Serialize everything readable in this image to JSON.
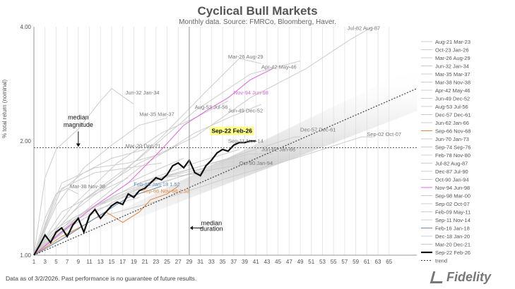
{
  "chart_data": {
    "type": "line",
    "title": "Cyclical Bull Markets",
    "subtitle": "Monthly data.  Source: FMRCo, Bloomberg, Haver.",
    "ylabel": "% total return (nominal)",
    "xlabel": "",
    "y_scale": "log",
    "ylim": [
      1.0,
      4.0
    ],
    "y_ticks": [
      {
        "value": 1.0,
        "label": "1.00"
      },
      {
        "value": 2.0,
        "label": "2.00"
      },
      {
        "value": 4.0,
        "label": "4.00"
      }
    ],
    "xlim": [
      1,
      70
    ],
    "x_ticks": [
      1,
      3,
      5,
      7,
      9,
      11,
      13,
      15,
      17,
      19,
      21,
      23,
      25,
      27,
      29,
      31,
      33,
      35,
      37,
      39,
      41,
      43,
      45,
      47,
      49,
      51,
      53,
      55,
      57,
      59,
      61,
      63,
      65
    ],
    "median_duration_x": 29,
    "median_magnitude_y": 1.92,
    "grid": true,
    "legend_position": "right",
    "series": [
      {
        "name": "Aug-21 Mar-23",
        "color": "#cccccc",
        "x": [
          1,
          5,
          9,
          13,
          17,
          20
        ],
        "y": [
          1.0,
          1.12,
          1.25,
          1.33,
          1.38,
          1.42
        ]
      },
      {
        "name": "Oct-23 Jan-26",
        "color": "#cccccc",
        "x": [
          1,
          6,
          12,
          18,
          24,
          28
        ],
        "y": [
          1.0,
          1.18,
          1.35,
          1.55,
          1.7,
          1.8
        ]
      },
      {
        "name": "Mar-26 Aug-29",
        "color": "#cccccc",
        "x": [
          1,
          8,
          16,
          24,
          32,
          38,
          42
        ],
        "y": [
          1.0,
          1.3,
          1.6,
          2.05,
          2.7,
          3.3,
          3.2
        ]
      },
      {
        "name": "Jun-32 Jan-34",
        "color": "#cccccc",
        "x": [
          1,
          3,
          5,
          9,
          13,
          15,
          19
        ],
        "y": [
          1.0,
          1.6,
          1.9,
          2.15,
          2.55,
          2.75,
          2.5
        ]
      },
      {
        "name": "Mar-35 Mar-37",
        "color": "#cccccc",
        "x": [
          1,
          5,
          10,
          15,
          20,
          25
        ],
        "y": [
          1.0,
          1.35,
          1.7,
          1.95,
          2.2,
          2.3
        ]
      },
      {
        "name": "Mar-38 Nov-38",
        "color": "#cccccc",
        "x": [
          1,
          3,
          5,
          7,
          9
        ],
        "y": [
          1.0,
          1.25,
          1.45,
          1.5,
          1.45
        ]
      },
      {
        "name": "Apr-42 May-46",
        "color": "#cccccc",
        "x": [
          1,
          10,
          20,
          30,
          40,
          49
        ],
        "y": [
          1.0,
          1.4,
          1.8,
          2.4,
          3.0,
          3.25
        ]
      },
      {
        "name": "Jun-49 Dec-52",
        "color": "#cccccc",
        "x": [
          1,
          10,
          20,
          30,
          36,
          42
        ],
        "y": [
          1.0,
          1.3,
          1.7,
          2.1,
          2.3,
          2.5
        ]
      },
      {
        "name": "Aug-53 Jul-56",
        "color": "#cccccc",
        "x": [
          1,
          8,
          16,
          24,
          30,
          36
        ],
        "y": [
          1.0,
          1.35,
          1.75,
          2.1,
          2.3,
          2.55
        ]
      },
      {
        "name": "Dec-57 Dec-61",
        "color": "#cccccc",
        "x": [
          1,
          12,
          24,
          36,
          48,
          49
        ],
        "y": [
          1.0,
          1.35,
          1.6,
          1.8,
          2.05,
          2.05
        ]
      },
      {
        "name": "Jun-62 Jan-66",
        "color": "#cccccc",
        "x": [
          1,
          10,
          20,
          30,
          40,
          44
        ],
        "y": [
          1.0,
          1.3,
          1.55,
          1.7,
          1.85,
          1.85
        ]
      },
      {
        "name": "Sep-66 Nov-68",
        "color": "#e6843a",
        "x": [
          1,
          6,
          10,
          14,
          17,
          20,
          22,
          25,
          27
        ],
        "y": [
          1.0,
          1.12,
          1.2,
          1.3,
          1.22,
          1.3,
          1.4,
          1.45,
          1.52
        ]
      },
      {
        "name": "Jun-70 Jan-73",
        "color": "#cccccc",
        "x": [
          1,
          8,
          16,
          24,
          32
        ],
        "y": [
          1.0,
          1.25,
          1.45,
          1.6,
          1.7
        ]
      },
      {
        "name": "Sep-74 Sep-76",
        "color": "#cccccc",
        "x": [
          1,
          6,
          12,
          18,
          24
        ],
        "y": [
          1.0,
          1.5,
          1.65,
          1.7,
          1.75
        ]
      },
      {
        "name": "Feb-78 Nov-80",
        "color": "#cccccc",
        "x": [
          1,
          8,
          16,
          24,
          32,
          34
        ],
        "y": [
          1.0,
          1.2,
          1.4,
          1.55,
          1.7,
          1.75
        ]
      },
      {
        "name": "Jul-82 Aug-87",
        "color": "#cccccc",
        "x": [
          1,
          10,
          20,
          30,
          40,
          50,
          58,
          62
        ],
        "y": [
          1.0,
          1.4,
          1.75,
          2.05,
          2.6,
          3.1,
          3.7,
          4.0
        ]
      },
      {
        "name": "Dec-87 Jul-90",
        "color": "#cccccc",
        "x": [
          1,
          8,
          16,
          24,
          32
        ],
        "y": [
          1.0,
          1.2,
          1.4,
          1.6,
          1.65
        ]
      },
      {
        "name": "Oct-90 Jan-94",
        "color": "#cccccc",
        "x": [
          1,
          10,
          20,
          30,
          40
        ],
        "y": [
          1.0,
          1.3,
          1.5,
          1.65,
          1.75
        ]
      },
      {
        "name": "Nov-94 Jun-98",
        "color": "#e066e0",
        "x": [
          1,
          6,
          12,
          18,
          24,
          28,
          32,
          36,
          40,
          44
        ],
        "y": [
          1.0,
          1.15,
          1.35,
          1.55,
          1.9,
          2.2,
          2.4,
          2.6,
          2.9,
          3.1
        ]
      },
      {
        "name": "Sep-98 Mar-00",
        "color": "#cccccc",
        "x": [
          1,
          6,
          12,
          18
        ],
        "y": [
          1.0,
          1.3,
          1.45,
          1.6
        ]
      },
      {
        "name": "Sep-02 Oct-07",
        "color": "#cccccc",
        "x": [
          1,
          12,
          24,
          36,
          48,
          60,
          62
        ],
        "y": [
          1.0,
          1.25,
          1.4,
          1.6,
          1.8,
          2.05,
          2.05
        ]
      },
      {
        "name": "Feb-09 May-11",
        "color": "#cccccc",
        "x": [
          1,
          6,
          12,
          18,
          24,
          27
        ],
        "y": [
          1.0,
          1.55,
          1.7,
          1.75,
          1.85,
          1.95
        ]
      },
      {
        "name": "Sep-11 Nov-14",
        "color": "#cccccc",
        "x": [
          1,
          10,
          20,
          30,
          38
        ],
        "y": [
          1.0,
          1.3,
          1.55,
          1.75,
          1.9
        ]
      },
      {
        "name": "Feb-16 Jan-18",
        "color": "#6a8fb8",
        "x": [
          1,
          6,
          12,
          18,
          24
        ],
        "y": [
          1.0,
          1.1,
          1.25,
          1.42,
          1.52
        ]
      },
      {
        "name": "Dec-18 Jan-20",
        "color": "#cccccc",
        "x": [
          1,
          4,
          8,
          12,
          14
        ],
        "y": [
          1.0,
          1.15,
          1.25,
          1.35,
          1.38
        ]
      },
      {
        "name": "Mar-20 Dec-21",
        "color": "#cccccc",
        "x": [
          1,
          5,
          10,
          15,
          21
        ],
        "y": [
          1.0,
          1.45,
          1.65,
          1.8,
          1.9
        ]
      },
      {
        "name": "Sep-22 Feb-26",
        "color": "#111111",
        "width": 2.2,
        "x": [
          1,
          2,
          3,
          4,
          5,
          6,
          7,
          8,
          9,
          10,
          11,
          12,
          13,
          14,
          15,
          16,
          17,
          18,
          19,
          20,
          21,
          22,
          23,
          24,
          25,
          26,
          27,
          28,
          29,
          30,
          31,
          32,
          33,
          34,
          35,
          36,
          37,
          38,
          39,
          40,
          41
        ],
        "y": [
          1.0,
          1.06,
          1.13,
          1.08,
          1.15,
          1.18,
          1.12,
          1.2,
          1.25,
          1.15,
          1.27,
          1.32,
          1.25,
          1.3,
          1.35,
          1.38,
          1.36,
          1.45,
          1.42,
          1.48,
          1.5,
          1.55,
          1.6,
          1.58,
          1.63,
          1.72,
          1.75,
          1.7,
          1.78,
          1.65,
          1.62,
          1.72,
          1.78,
          1.86,
          1.9,
          1.88,
          1.95,
          1.98,
          1.98,
          2.0,
          2.0
        ]
      },
      {
        "name": "trend",
        "color": "#444444",
        "dashed": true,
        "x": [
          1,
          70
        ],
        "y": [
          1.0,
          2.75
        ]
      }
    ],
    "annotations": [
      {
        "text": "median",
        "x": 9,
        "y": 2.28
      },
      {
        "text": "magnitude",
        "x": 9,
        "y": 2.18
      },
      {
        "text": "median",
        "x": 33,
        "y": 1.2
      },
      {
        "text": "duration",
        "x": 33,
        "y": 1.16
      }
    ],
    "series_labels": [
      {
        "text": "Jul-82 Aug-87",
        "x": 57.5,
        "y": 3.92,
        "color": "#777777"
      },
      {
        "text": "Mar-26 Aug-29",
        "x": 36,
        "y": 3.3,
        "color": "#777777"
      },
      {
        "text": "Apr-42 May-46",
        "x": 42,
        "y": 3.1,
        "color": "#777777"
      },
      {
        "text": "Jun-32 Jan-34",
        "x": 17.5,
        "y": 2.65,
        "color": "#777777"
      },
      {
        "text": "Nov-94 Jun-98",
        "x": 37,
        "y": 2.65,
        "color": "#e066e0"
      },
      {
        "text": "Mar-35 Mar-37",
        "x": 20,
        "y": 2.33,
        "color": "#777777"
      },
      {
        "text": "Aug-53 Jul-56",
        "x": 30,
        "y": 2.43,
        "color": "#777777"
      },
      {
        "text": "Jun-49 Dec-52",
        "x": 36,
        "y": 2.38,
        "color": "#777777"
      },
      {
        "text": "Dec-57 Dec-61",
        "x": 49,
        "y": 2.12,
        "color": "#777777"
      },
      {
        "text": "Sep-02 Oct-07",
        "x": 61,
        "y": 2.06,
        "color": "#777777"
      },
      {
        "text": "Sep-11 Nov-14",
        "x": 36,
        "y": 1.98,
        "color": "#777777"
      },
      {
        "text": "Mar-20 Dec-21",
        "x": 17.5,
        "y": 1.92,
        "color": "#777777"
      },
      {
        "text": "Jun-62 Jan-66",
        "x": 42,
        "y": 1.88,
        "color": "#777777"
      },
      {
        "text": "Oct-90 Jan-94",
        "x": 38,
        "y": 1.73,
        "color": "#777777"
      },
      {
        "text": "Mar-38 Nov-38",
        "x": 7.5,
        "y": 1.5,
        "color": "#777777"
      },
      {
        "text": "Feb-16 Jan-18 1.52",
        "x": 19,
        "y": 1.52,
        "color": "#6a8fb8"
      },
      {
        "text": "Sep-66 Nov-68 1.52",
        "x": 20.5,
        "y": 1.46,
        "color": "#e6843a"
      }
    ],
    "highlight_label": {
      "text": "Sep-22 Feb-26",
      "x": 33,
      "y": 2.1
    }
  },
  "footnote": "Data as of 3/2/2026. Past performance is no guarantee of future results.",
  "logo_text": "Fidelity"
}
